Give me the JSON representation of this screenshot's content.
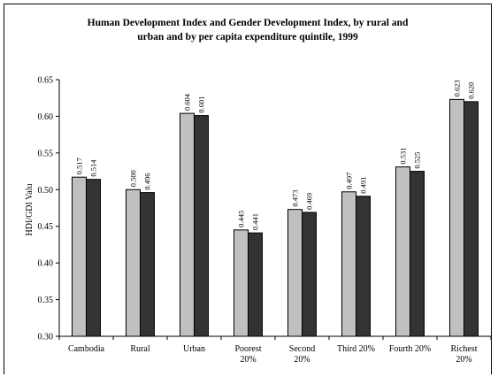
{
  "chart_data": {
    "type": "bar",
    "title_line1": "Human Development Index and Gender Development Index, by rural and",
    "title_line2": "urban and by per capita expenditure quintile, 1999",
    "ylabel": "HDI/GDI Valu",
    "ylim": [
      0.3,
      0.65
    ],
    "yticks": [
      "0.30",
      "0.35",
      "0.40",
      "0.45",
      "0.50",
      "0.55",
      "0.60",
      "0.65"
    ],
    "categories": [
      [
        "Cambodia"
      ],
      [
        "Rural"
      ],
      [
        "Urban"
      ],
      [
        "Poorest",
        "20%"
      ],
      [
        "Second",
        "20%"
      ],
      [
        "Third 20%"
      ],
      [
        "Fourth 20%"
      ],
      [
        "Richest",
        "20%"
      ]
    ],
    "series": [
      {
        "values": [
          0.517,
          0.5,
          0.604,
          0.445,
          0.473,
          0.497,
          0.531,
          0.623
        ],
        "labels": [
          "0.517",
          "0.500",
          "0.604",
          "0.445",
          "0.473",
          "0.497",
          "0.531",
          "0.623"
        ],
        "color": "#c0c0c0"
      },
      {
        "values": [
          0.514,
          0.496,
          0.601,
          0.441,
          0.469,
          0.491,
          0.525,
          0.62
        ],
        "labels": [
          "0.514",
          "0.496",
          "0.601",
          "0.441",
          "0.469",
          "0.491",
          "0.525",
          "0.620"
        ],
        "color": "#333333"
      }
    ],
    "grid": false,
    "legend": "none"
  }
}
